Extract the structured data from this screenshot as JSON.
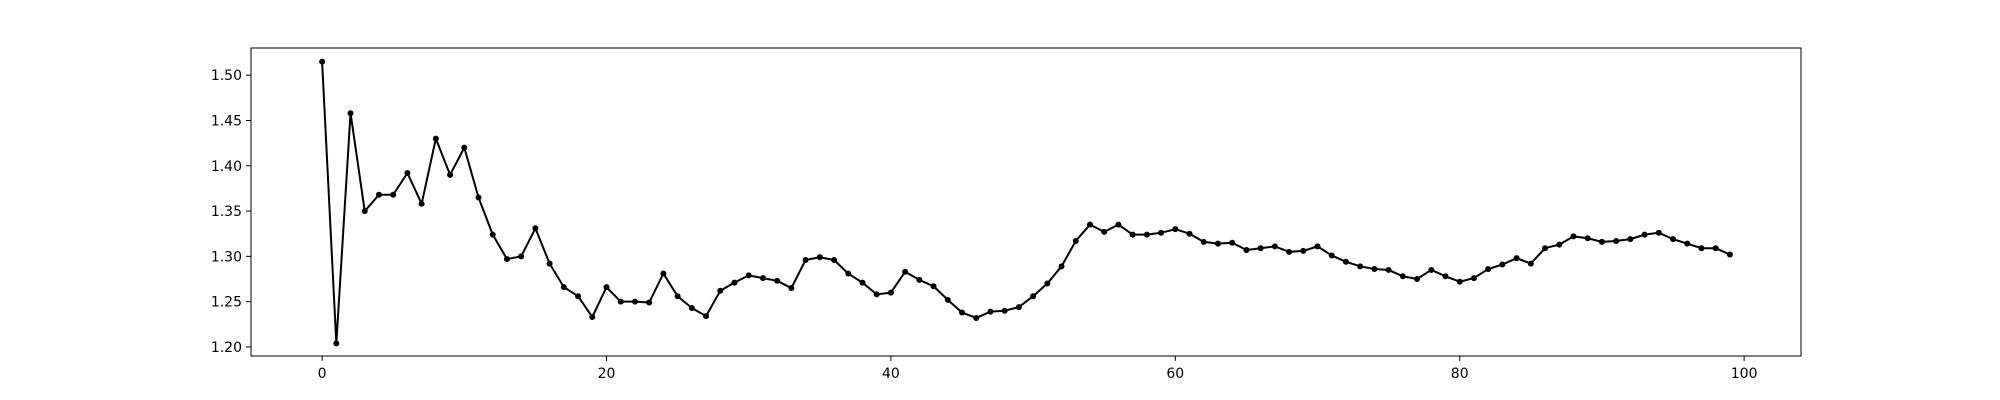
{
  "chart_data": {
    "type": "line",
    "title": "",
    "xlabel": "",
    "ylabel": "",
    "xlim": [
      -5,
      104
    ],
    "ylim": [
      1.19,
      1.53
    ],
    "xticks": [
      0,
      20,
      40,
      60,
      80,
      100
    ],
    "xtick_labels": [
      "0",
      "20",
      "40",
      "60",
      "80",
      "100"
    ],
    "yticks": [
      1.2,
      1.25,
      1.3,
      1.35,
      1.4,
      1.45,
      1.5
    ],
    "ytick_labels": [
      "1.20",
      "1.25",
      "1.30",
      "1.35",
      "1.40",
      "1.45",
      "1.50"
    ],
    "grid": false,
    "legend": null,
    "series": [
      {
        "name": "series",
        "color": "#000000",
        "marker": "dot",
        "x": [
          0,
          1,
          2,
          3,
          4,
          5,
          6,
          7,
          8,
          9,
          10,
          11,
          12,
          13,
          14,
          15,
          16,
          17,
          18,
          19,
          20,
          21,
          22,
          23,
          24,
          25,
          26,
          27,
          28,
          29,
          30,
          31,
          32,
          33,
          34,
          35,
          36,
          37,
          38,
          39,
          40,
          41,
          42,
          43,
          44,
          45,
          46,
          47,
          48,
          49,
          50,
          51,
          52,
          53,
          54,
          55,
          56,
          57,
          58,
          59,
          60,
          61,
          62,
          63,
          64,
          65,
          66,
          67,
          68,
          69,
          70,
          71,
          72,
          73,
          74,
          75,
          76,
          77,
          78,
          79,
          80,
          81,
          82,
          83,
          84,
          85,
          86,
          87,
          88,
          89,
          90,
          91,
          92,
          93,
          94,
          95,
          96,
          97,
          98,
          99
        ],
        "y": [
          1.515,
          1.204,
          1.458,
          1.35,
          1.368,
          1.368,
          1.392,
          1.358,
          1.43,
          1.39,
          1.42,
          1.365,
          1.324,
          1.297,
          1.3,
          1.331,
          1.292,
          1.266,
          1.256,
          1.233,
          1.266,
          1.25,
          1.25,
          1.249,
          1.281,
          1.256,
          1.243,
          1.234,
          1.262,
          1.271,
          1.279,
          1.276,
          1.273,
          1.265,
          1.296,
          1.299,
          1.296,
          1.281,
          1.271,
          1.258,
          1.26,
          1.283,
          1.274,
          1.267,
          1.252,
          1.238,
          1.232,
          1.239,
          1.24,
          1.244,
          1.256,
          1.27,
          1.289,
          1.317,
          1.335,
          1.327,
          1.335,
          1.324,
          1.324,
          1.326,
          1.33,
          1.325,
          1.316,
          1.314,
          1.315,
          1.307,
          1.309,
          1.311,
          1.305,
          1.306,
          1.311,
          1.301,
          1.294,
          1.289,
          1.286,
          1.285,
          1.278,
          1.275,
          1.285,
          1.278,
          1.272,
          1.276,
          1.286,
          1.291,
          1.298,
          1.292,
          1.309,
          1.313,
          1.322,
          1.32,
          1.316,
          1.317,
          1.319,
          1.324,
          1.326,
          1.319,
          1.314,
          1.309,
          1.309,
          1.302
        ]
      }
    ]
  }
}
